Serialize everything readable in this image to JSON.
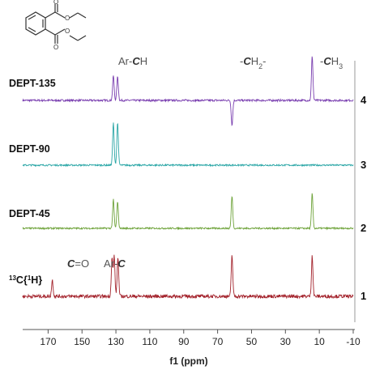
{
  "chart_data": {
    "type": "line",
    "xlabel": "f1 (ppm)",
    "x_ticks": [
      170,
      150,
      130,
      110,
      90,
      70,
      50,
      30,
      10,
      -10
    ],
    "xlim": [
      185,
      -10
    ],
    "x_reversed": true,
    "series": [
      {
        "name": "DEPT-135",
        "number": "4",
        "color": "#7a3fb0",
        "noise": 0.55,
        "peaks": [
          {
            "x": 131.5,
            "h": 1.0
          },
          {
            "x": 129.0,
            "h": 0.95
          },
          {
            "x": 61.5,
            "h": -1.0
          },
          {
            "x": 14.2,
            "h": 1.8
          }
        ]
      },
      {
        "name": "DEPT-90",
        "number": "3",
        "color": "#2aa6a6",
        "noise": 0.45,
        "peaks": [
          {
            "x": 131.5,
            "h": 1.7
          },
          {
            "x": 129.0,
            "h": 1.7
          }
        ]
      },
      {
        "name": "DEPT-45",
        "number": "2",
        "color": "#6ea33a",
        "noise": 0.45,
        "peaks": [
          {
            "x": 131.5,
            "h": 1.15
          },
          {
            "x": 129.0,
            "h": 1.05
          },
          {
            "x": 61.5,
            "h": 1.3
          },
          {
            "x": 14.2,
            "h": 1.4
          }
        ]
      },
      {
        "name": "13C{1H}",
        "number": "1",
        "color": "#a3222b",
        "noise": 0.95,
        "peaks": [
          {
            "x": 167.5,
            "h": 0.65
          },
          {
            "x": 132.3,
            "h": 1.55
          },
          {
            "x": 131.0,
            "h": 1.6
          },
          {
            "x": 128.8,
            "h": 1.55
          },
          {
            "x": 61.5,
            "h": 1.65
          },
          {
            "x": 14.2,
            "h": 1.65
          }
        ]
      }
    ],
    "annotations": [
      {
        "id": "arch",
        "prefix": "Ar-",
        "em": "C",
        "suffix": "H",
        "x_ppm": 129.5,
        "row": 0
      },
      {
        "id": "ch2",
        "prefix": "-",
        "em": "C",
        "suffix": "H",
        "sub": "2",
        "tail": "-",
        "x_ppm": 61.5,
        "row": 0
      },
      {
        "id": "ch3",
        "prefix": "-",
        "em": "C",
        "suffix": "H",
        "sub": "3",
        "tail": "",
        "x_ppm": 14.2,
        "row": 0
      },
      {
        "id": "co",
        "prefix": "",
        "em": "C",
        "suffix": "=O",
        "x_ppm": 167.5,
        "row": 3
      },
      {
        "id": "arc",
        "prefix": "Ar-",
        "em": "C",
        "suffix": "",
        "x_ppm": 131.5,
        "row": 3
      }
    ]
  }
}
